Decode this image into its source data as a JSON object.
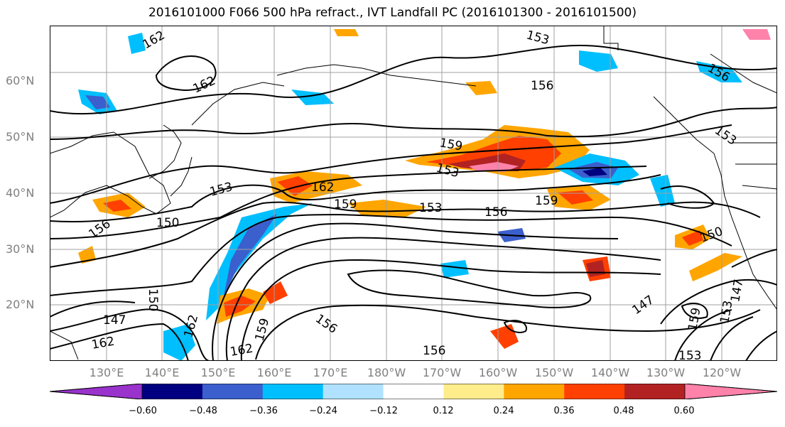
{
  "title": "2016101000 F066 500 hPa refract., IVT Landfall PC (2016101300 - 2016101500)",
  "lat_labels": [
    "60°N",
    "50°N",
    "40°N",
    "30°N",
    "20°N"
  ],
  "lon_labels": [
    "130°E",
    "140°E",
    "150°E",
    "160°E",
    "170°E",
    "180°W",
    "170°W",
    "160°W",
    "150°W",
    "140°W",
    "130°W",
    "120°W"
  ],
  "contour_labels": [
    "162",
    "162",
    "153",
    "156",
    "156",
    "153",
    "159",
    "153",
    "162",
    "153",
    "159",
    "153",
    "156",
    "159",
    "150",
    "150",
    "150",
    "147",
    "162",
    "159",
    "156",
    "156",
    "147",
    "159",
    "153",
    "147",
    "153",
    "162",
    "156",
    "162"
  ],
  "colorbar": {
    "colors": [
      "#9933cc",
      "#000080",
      "#3b5fcd",
      "#00bfff",
      "#b0e2ff",
      "#ffffff",
      "#ffec8b",
      "#ffa500",
      "#ff4000",
      "#b22222",
      "#ff82ab"
    ],
    "ticks": [
      "−0.60",
      "−0.48",
      "−0.36",
      "−0.24",
      "−0.12",
      "0.12",
      "0.24",
      "0.36",
      "0.48",
      "0.60"
    ]
  }
}
